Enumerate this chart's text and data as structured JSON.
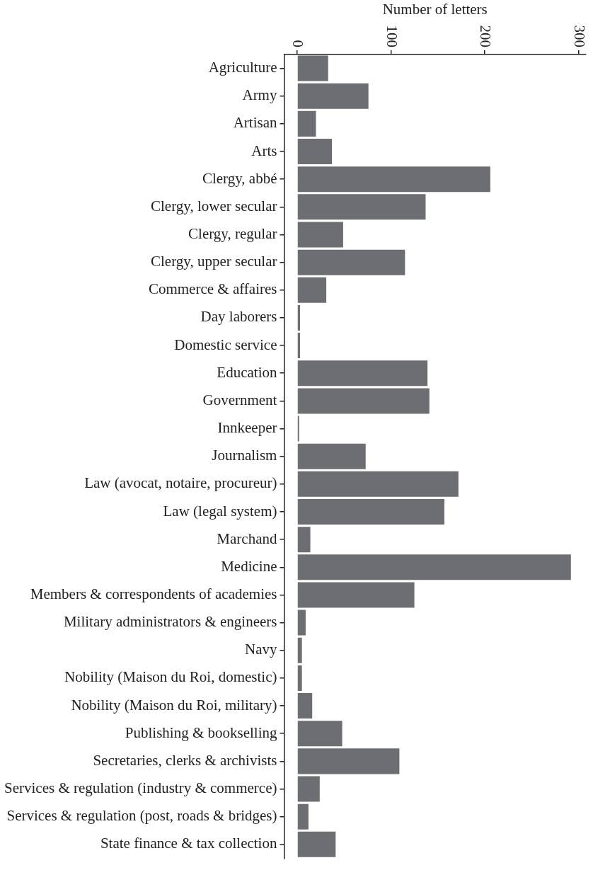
{
  "chart_data": {
    "type": "bar",
    "orientation": "horizontal",
    "xlabel": "Number of letters",
    "categories": [
      "Agriculture",
      "Army",
      "Artisan",
      "Arts",
      "Clergy, abbé",
      "Clergy, lower secular",
      "Clergy, regular",
      "Clergy, upper secular",
      "Commerce & affaires",
      "Day laborers",
      "Domestic service",
      "Education",
      "Government",
      "Innkeeper",
      "Journalism",
      "Law (avocat, notaire, procureur)",
      "Law (legal system)",
      "Marchand",
      "Medicine",
      "Members & correspondents of academies",
      "Military administrators & engineers",
      "Navy",
      "Nobility (Maison du Roi, domestic)",
      "Nobility (Maison du Roi, military)",
      "Publishing & bookselling",
      "Secretaries, clerks & archivists",
      "Services & regulation (industry & commerce)",
      "Services & regulation (post, roads & bridges)",
      "State finance & tax collection"
    ],
    "values": [
      33,
      76,
      20,
      37,
      206,
      137,
      49,
      115,
      31,
      3,
      3,
      139,
      141,
      2,
      73,
      172,
      157,
      14,
      292,
      125,
      9,
      5,
      5,
      16,
      48,
      109,
      24,
      12,
      41
    ],
    "color": "#6d6e72",
    "xlim": [
      -14,
      308
    ],
    "xticks": [
      0,
      100,
      200,
      300
    ],
    "grid": false,
    "legend": false
  }
}
